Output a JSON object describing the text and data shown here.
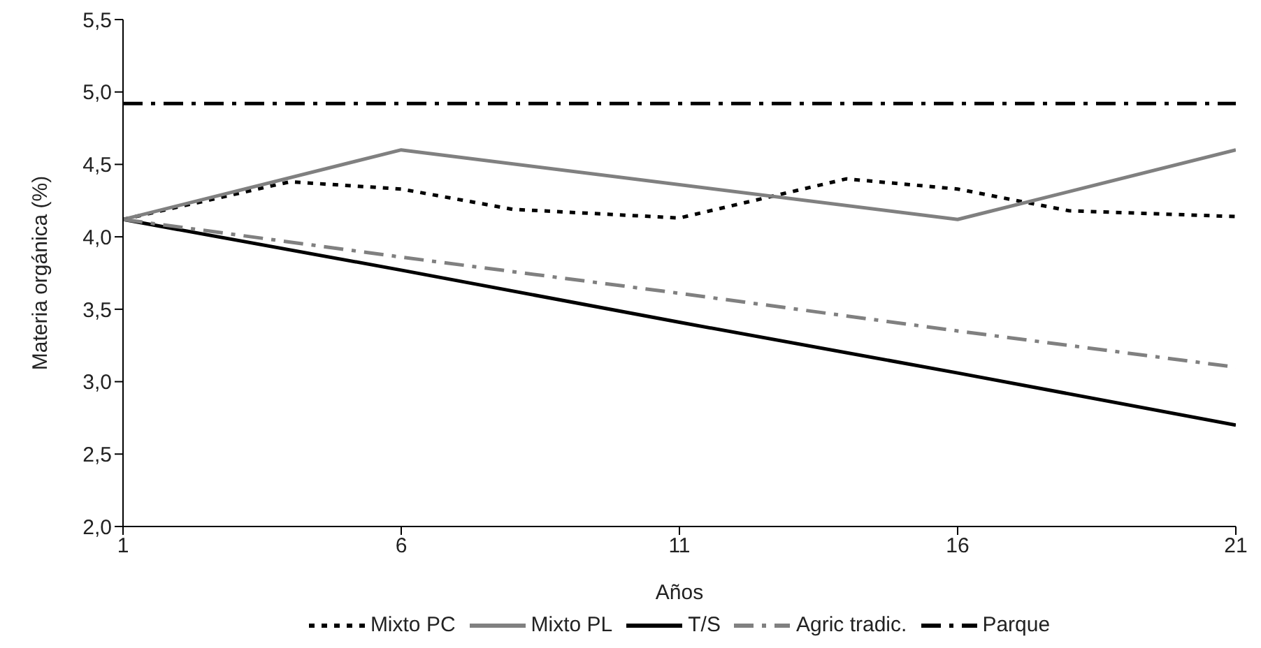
{
  "chart_data": {
    "type": "line",
    "xlabel": "Años",
    "ylabel": "Materia orgánica (%)",
    "xlim": [
      1,
      21
    ],
    "xticks": [
      1,
      6,
      11,
      16,
      21
    ],
    "ylim": [
      2,
      5.5
    ],
    "yticks": [
      {
        "value": 2,
        "label": "2,0"
      },
      {
        "value": 2.5,
        "label": "2,5"
      },
      {
        "value": 3,
        "label": "3,0"
      },
      {
        "value": 3.5,
        "label": "3,5"
      },
      {
        "value": 4,
        "label": "4,0"
      },
      {
        "value": 4.5,
        "label": "4,5"
      },
      {
        "value": 5,
        "label": "5,0"
      },
      {
        "value": 5.5,
        "label": "5,5"
      }
    ],
    "legend": "bottom",
    "marker": "none",
    "series": [
      {
        "name": "Mixto PC",
        "color": "#000000",
        "line_style": "dotted",
        "x": [
          1,
          4,
          6,
          8,
          11,
          14,
          16,
          18,
          21
        ],
        "values": [
          4.12,
          4.38,
          4.33,
          4.19,
          4.13,
          4.4,
          4.33,
          4.18,
          4.14
        ]
      },
      {
        "name": "Mixto PL",
        "color": "#808080",
        "line_style": "solid",
        "x": [
          1,
          6,
          16,
          21
        ],
        "values": [
          4.12,
          4.6,
          4.12,
          4.6
        ]
      },
      {
        "name": "T/S",
        "color": "#000000",
        "line_style": "solid",
        "x": [
          1,
          6,
          11,
          16,
          21
        ],
        "values": [
          4.12,
          3.77,
          3.41,
          3.06,
          2.7
        ]
      },
      {
        "name": "Agric tradic.",
        "color": "#808080",
        "line_style": "dashed",
        "x": [
          1,
          6,
          11,
          16,
          21
        ],
        "values": [
          4.12,
          3.86,
          3.61,
          3.35,
          3.1
        ]
      },
      {
        "name": "Parque",
        "color": "#000000",
        "line_style": "dashed",
        "x": [
          1,
          21
        ],
        "values": [
          4.92,
          4.92
        ]
      }
    ]
  }
}
